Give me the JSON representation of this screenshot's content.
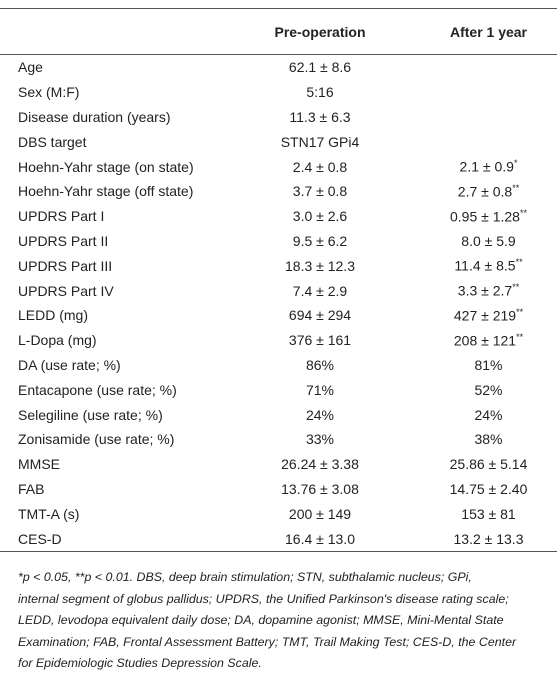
{
  "table": {
    "header": [
      "Pre-operation",
      "After 1 year"
    ],
    "rows": [
      {
        "label": "Age",
        "pre": "62.1 ± 8.6"
      },
      {
        "label": "Sex (M:F)",
        "pre": "5:16"
      },
      {
        "label": "Disease duration (years)",
        "pre": "11.3 ± 6.3"
      },
      {
        "label": "DBS target",
        "pre": "STN17 GPi4"
      },
      {
        "label": "Hoehn-Yahr stage (on state)",
        "pre": "2.4 ± 0.8",
        "post": "2.1 ± 0.9",
        "post_sup": "*"
      },
      {
        "label": "Hoehn-Yahr stage (off state)",
        "pre": "3.7 ± 0.8",
        "post": "2.7 ± 0.8",
        "post_sup": "**"
      },
      {
        "label": "UPDRS Part I",
        "pre": "3.0 ± 2.6",
        "post": "0.95 ± 1.28",
        "post_sup": "**"
      },
      {
        "label": "UPDRS Part II",
        "pre": "9.5 ± 6.2",
        "post": "8.0 ± 5.9"
      },
      {
        "label": "UPDRS Part III",
        "pre": "18.3 ± 12.3",
        "post": "11.4 ± 8.5",
        "post_sup": "**"
      },
      {
        "label": "UPDRS Part IV",
        "pre": "7.4 ± 2.9",
        "post": "3.3 ± 2.7",
        "post_sup": "**"
      },
      {
        "label": "LEDD (mg)",
        "pre": "694 ± 294",
        "post": "427 ± 219",
        "post_sup": "**"
      },
      {
        "label": "L-Dopa (mg)",
        "pre": "376 ± 161",
        "post": "208 ± 121",
        "post_sup": "**"
      },
      {
        "label": "DA (use rate; %)",
        "pre": "86%",
        "post": "81%"
      },
      {
        "label": "Entacapone (use rate; %)",
        "pre": "71%",
        "post": "52%"
      },
      {
        "label": "Selegiline (use rate; %)",
        "pre": "24%",
        "post": "24%"
      },
      {
        "label": "Zonisamide (use rate; %)",
        "pre": "33%",
        "post": "38%"
      },
      {
        "label": "MMSE",
        "pre": "26.24 ± 3.38",
        "post": "25.86 ± 5.14"
      },
      {
        "label": "FAB",
        "pre": "13.76 ± 3.08",
        "post": "14.75 ± 2.40"
      },
      {
        "label": "TMT-A (s)",
        "pre": "200 ± 149",
        "post": "153 ± 81"
      },
      {
        "label": "CES-D",
        "pre": "16.4 ± 13.0",
        "post": "13.2 ± 13.3"
      }
    ]
  },
  "footnote": [
    "*p < 0.05, **p < 0.01. DBS, deep brain stimulation; STN, subthalamic nucleus; GPi,",
    "internal segment of globus pallidus; UPDRS, the Unified Parkinson's disease rating scale;",
    "LEDD, levodopa equivalent daily dose; DA, dopamine agonist; MMSE, Mini-Mental State",
    "Examination; FAB, Frontal Assessment Battery; TMT, Trail Making Test; CES-D, the Center",
    "for Epidemiologic Studies Depression Scale."
  ]
}
